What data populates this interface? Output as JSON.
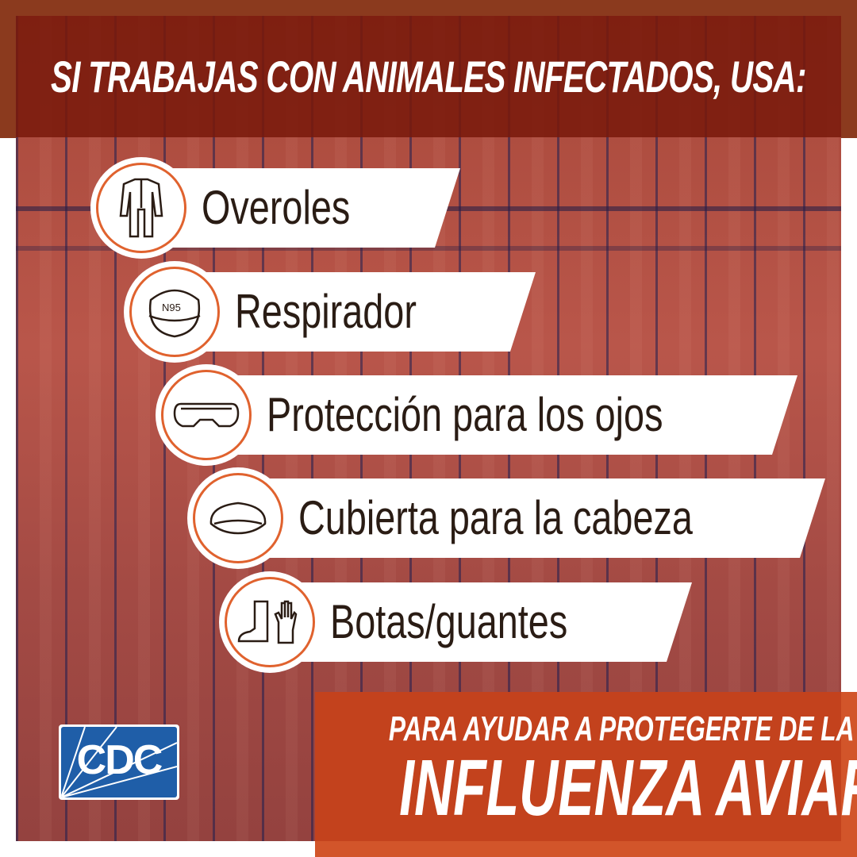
{
  "header": {
    "title": "SI TRABAJAS CON ANIMALES INFECTADOS, USA:"
  },
  "items": [
    {
      "label": "Overoles",
      "icon": "coveralls-icon"
    },
    {
      "label": "Respirador",
      "icon": "n95-respirator-icon",
      "icon_text": "N95"
    },
    {
      "label": "Protección para los ojos",
      "icon": "goggles-icon"
    },
    {
      "label": "Cubierta para la cabeza",
      "icon": "head-cover-icon"
    },
    {
      "label": "Botas/guantes",
      "icon": "boots-gloves-icon"
    }
  ],
  "footer": {
    "line1": "PARA AYUDAR A PROTEGERTE DE LA",
    "line2": "INFLUENZA AVIAR"
  },
  "logo": {
    "text": "CDC"
  },
  "colors": {
    "accent": "#e0622e",
    "header_band": "#8b3a1e",
    "cta": "#d2552a",
    "logo_blue": "#1f5ea8",
    "text_dark": "#2a1c14"
  }
}
